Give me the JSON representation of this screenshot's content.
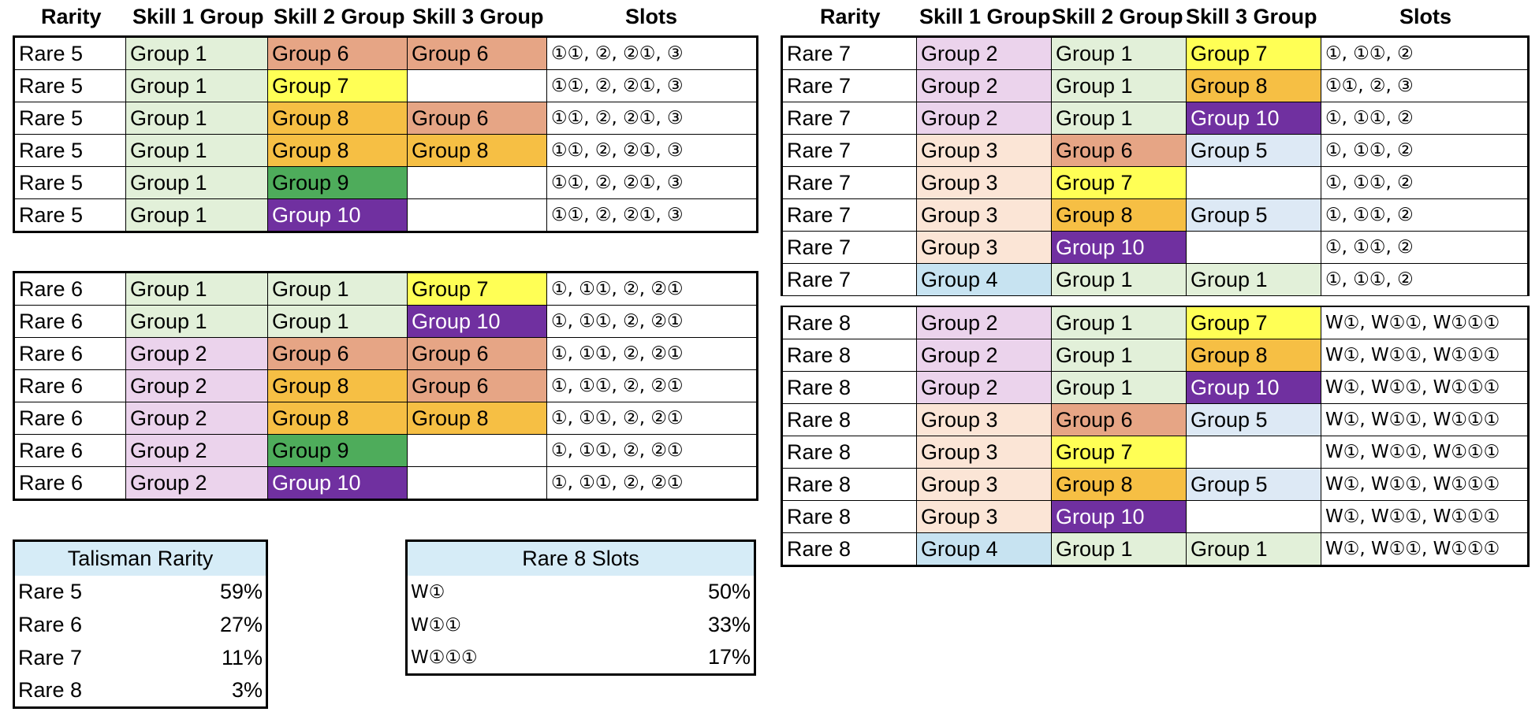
{
  "colors": {
    "Group 1": "#e2f0d9",
    "Group 2": "#ebd3ec",
    "Group 3": "#fbe5d6",
    "Group 4": "#c7e3f1",
    "Group 5": "#dde9f5",
    "Group 6": "#e6a585",
    "Group 7": "#ffff55",
    "Group 8": "#f6bf44",
    "Group 9": "#4eac5b",
    "Group 10": "#7030a0"
  },
  "headers": {
    "rarity": "Rarity",
    "skill1": "Skill 1 Group",
    "skill2": "Skill 2 Group",
    "skill3": "Skill 3 Group",
    "slots": "Slots"
  },
  "rare5": [
    [
      "Rare 5",
      "Group 1",
      "Group 6",
      "Group 6",
      "①①, ②, ②①, ③"
    ],
    [
      "Rare 5",
      "Group 1",
      "Group 7",
      "",
      "①①, ②, ②①, ③"
    ],
    [
      "Rare 5",
      "Group 1",
      "Group 8",
      "Group 6",
      "①①, ②, ②①, ③"
    ],
    [
      "Rare 5",
      "Group 1",
      "Group 8",
      "Group 8",
      "①①, ②, ②①, ③"
    ],
    [
      "Rare 5",
      "Group 1",
      "Group 9",
      "",
      "①①, ②, ②①, ③"
    ],
    [
      "Rare 5",
      "Group 1",
      "Group 10",
      "",
      "①①, ②, ②①, ③"
    ]
  ],
  "rare6": [
    [
      "Rare 6",
      "Group 1",
      "Group 1",
      "Group 7",
      "①, ①①, ②, ②①"
    ],
    [
      "Rare 6",
      "Group 1",
      "Group 1",
      "Group 10",
      "①, ①①, ②, ②①"
    ],
    [
      "Rare 6",
      "Group 2",
      "Group 6",
      "Group 6",
      "①, ①①, ②, ②①"
    ],
    [
      "Rare 6",
      "Group 2",
      "Group 8",
      "Group 6",
      "①, ①①, ②, ②①"
    ],
    [
      "Rare 6",
      "Group 2",
      "Group 8",
      "Group 8",
      "①, ①①, ②, ②①"
    ],
    [
      "Rare 6",
      "Group 2",
      "Group 9",
      "",
      "①, ①①, ②, ②①"
    ],
    [
      "Rare 6",
      "Group 2",
      "Group 10",
      "",
      "①, ①①, ②, ②①"
    ]
  ],
  "rare7": [
    [
      "Rare 7",
      "Group 2",
      "Group 1",
      "Group 7",
      "①, ①①, ②"
    ],
    [
      "Rare 7",
      "Group 2",
      "Group 1",
      "Group 8",
      " ①①, ②, ③"
    ],
    [
      "Rare 7",
      "Group 2",
      "Group 1",
      "Group 10",
      "①, ①①, ②"
    ],
    [
      "Rare 7",
      "Group 3",
      "Group 6",
      "Group 5",
      "①, ①①, ②"
    ],
    [
      "Rare 7",
      "Group 3",
      "Group 7",
      "",
      "①, ①①, ②"
    ],
    [
      "Rare 7",
      "Group 3",
      "Group 8",
      "Group 5",
      "①, ①①, ②"
    ],
    [
      "Rare 7",
      "Group 3",
      "Group 10",
      "",
      "①, ①①, ②"
    ],
    [
      "Rare 7",
      "Group 4",
      "Group 1",
      "Group 1",
      "①, ①①, ②"
    ]
  ],
  "rare8": [
    [
      "Rare 8",
      "Group 2",
      "Group 1",
      "Group 7",
      "W①, W①①, W①①①"
    ],
    [
      "Rare 8",
      "Group 2",
      "Group 1",
      "Group 8",
      "W①, W①①, W①①①"
    ],
    [
      "Rare 8",
      "Group 2",
      "Group 1",
      "Group 10",
      "W①, W①①, W①①①"
    ],
    [
      "Rare 8",
      "Group 3",
      "Group 6",
      "Group 5",
      "W①, W①①, W①①①"
    ],
    [
      "Rare 8",
      "Group 3",
      "Group 7",
      "",
      "W①, W①①, W①①①"
    ],
    [
      "Rare 8",
      "Group 3",
      "Group 8",
      "Group 5",
      "W①, W①①, W①①①"
    ],
    [
      "Rare 8",
      "Group 3",
      "Group 10",
      "",
      "W①, W①①, W①①①"
    ],
    [
      "Rare 8",
      "Group 4",
      "Group 1",
      "Group 1",
      "W①, W①①, W①①①"
    ]
  ],
  "talisman_rarity": {
    "title": "Talisman Rarity",
    "rows": [
      [
        "Rare 5",
        "59%"
      ],
      [
        "Rare 6",
        "27%"
      ],
      [
        "Rare 7",
        "11%"
      ],
      [
        "Rare 8",
        "3%"
      ]
    ]
  },
  "rare8_slots": {
    "title": "Rare 8 Slots",
    "rows": [
      [
        "W①",
        "50%"
      ],
      [
        "W①①",
        "33%"
      ],
      [
        "W①①①",
        "17%"
      ]
    ]
  }
}
